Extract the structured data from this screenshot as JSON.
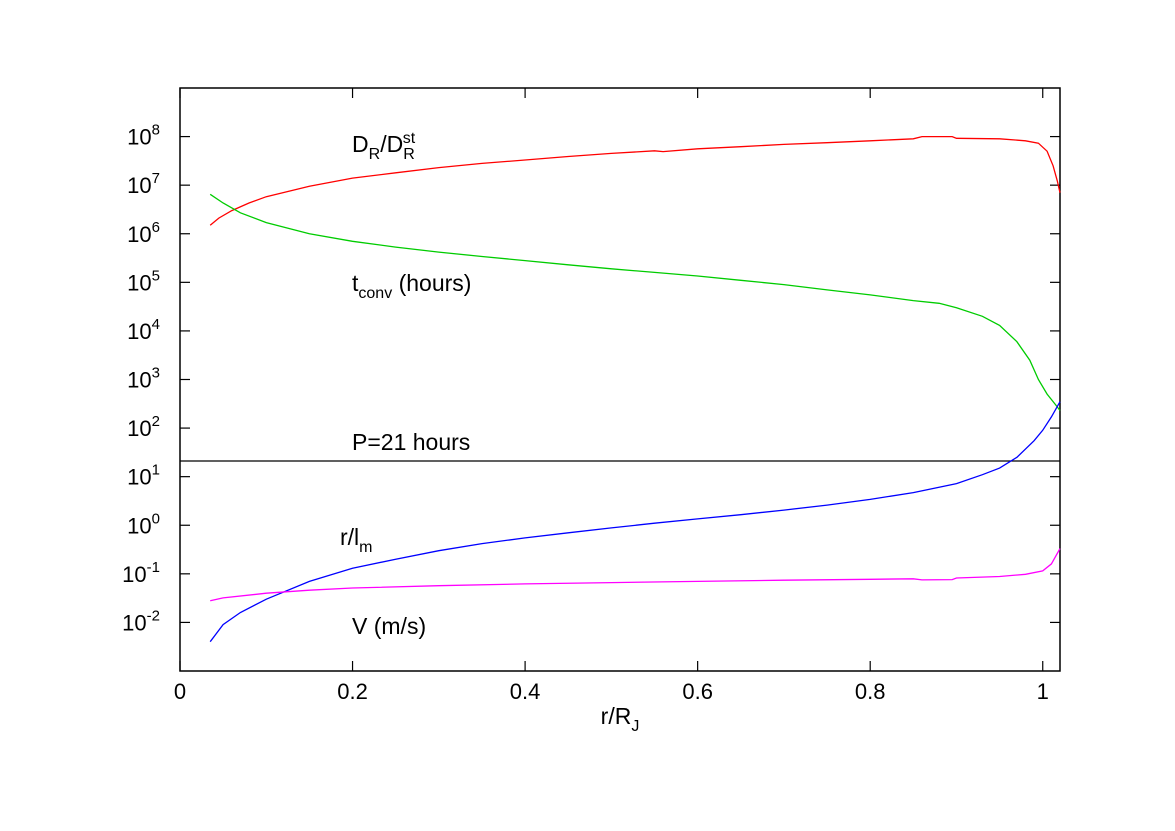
{
  "chart_data": {
    "type": "line",
    "title": "",
    "xlabel": {
      "base": "r/R",
      "sub": "J"
    },
    "ylabel": "",
    "xlim": [
      0,
      1.02
    ],
    "ylim_log10": [
      -3,
      9
    ],
    "yscale": "log",
    "grid": false,
    "x_ticks": [
      "0",
      "0.2",
      "0.4",
      "0.6",
      "0.8",
      "1"
    ],
    "y_ticks": [
      {
        "base": "10",
        "exp": "-2"
      },
      {
        "base": "10",
        "exp": "-1"
      },
      {
        "base": "10",
        "exp": "0"
      },
      {
        "base": "10",
        "exp": "1"
      },
      {
        "base": "10",
        "exp": "2"
      },
      {
        "base": "10",
        "exp": "3"
      },
      {
        "base": "10",
        "exp": "4"
      },
      {
        "base": "10",
        "exp": "5"
      },
      {
        "base": "10",
        "exp": "6"
      },
      {
        "base": "10",
        "exp": "7"
      },
      {
        "base": "10",
        "exp": "8"
      }
    ],
    "hline": {
      "y": 21,
      "color": "#000000"
    },
    "annotations": [
      {
        "id": "dr",
        "parts": [
          {
            "t": "D",
            "k": "n"
          },
          {
            "t": "R",
            "k": "sub"
          },
          {
            "t": "/D",
            "k": "n"
          },
          {
            "t": "R",
            "k": "subsup"
          }
        ],
        "sup": "st"
      },
      {
        "id": "tconv",
        "parts": [
          {
            "t": "t",
            "k": "n"
          },
          {
            "t": "conv",
            "k": "sub"
          },
          {
            "t": " (hours)",
            "k": "n"
          }
        ]
      },
      {
        "id": "period",
        "parts": [
          {
            "t": "P=21 hours",
            "k": "n"
          }
        ]
      },
      {
        "id": "rlm",
        "parts": [
          {
            "t": "r/l",
            "k": "n"
          },
          {
            "t": "m",
            "k": "sub"
          }
        ]
      },
      {
        "id": "velocity",
        "parts": [
          {
            "t": "V (m/s)",
            "k": "n"
          }
        ]
      }
    ],
    "series": [
      {
        "color": "#ff0000",
        "points": [
          [
            0.035,
            1500000.0
          ],
          [
            0.045,
            2100000.0
          ],
          [
            0.06,
            3000000.0
          ],
          [
            0.08,
            4300000.0
          ],
          [
            0.1,
            5800000.0
          ],
          [
            0.15,
            9500000.0
          ],
          [
            0.2,
            14000000.0
          ],
          [
            0.25,
            18000000.0
          ],
          [
            0.3,
            23000000.0
          ],
          [
            0.35,
            28000000.0
          ],
          [
            0.4,
            33000000.0
          ],
          [
            0.45,
            39000000.0
          ],
          [
            0.5,
            45000000.0
          ],
          [
            0.55,
            51000000.0
          ],
          [
            0.56,
            49000000.0
          ],
          [
            0.6,
            56000000.0
          ],
          [
            0.65,
            62000000.0
          ],
          [
            0.7,
            69000000.0
          ],
          [
            0.75,
            75000000.0
          ],
          [
            0.8,
            82000000.0
          ],
          [
            0.85,
            90000000.0
          ],
          [
            0.86,
            100000000.0
          ],
          [
            0.895,
            100000000.0
          ],
          [
            0.9,
            92000000.0
          ],
          [
            0.95,
            90000000.0
          ],
          [
            0.98,
            82000000.0
          ],
          [
            0.995,
            73000000.0
          ],
          [
            1.005,
            50000000.0
          ],
          [
            1.012,
            25000000.0
          ],
          [
            1.017,
            12000000.0
          ],
          [
            1.02,
            7000000.0
          ]
        ]
      },
      {
        "color": "#00cc00",
        "points": [
          [
            0.035,
            6500000.0
          ],
          [
            0.05,
            4300000.0
          ],
          [
            0.07,
            2700000.0
          ],
          [
            0.1,
            1700000.0
          ],
          [
            0.15,
            1000000.0
          ],
          [
            0.2,
            700000.0
          ],
          [
            0.25,
            530000.0
          ],
          [
            0.3,
            420000.0
          ],
          [
            0.35,
            340000.0
          ],
          [
            0.4,
            280000.0
          ],
          [
            0.45,
            230000.0
          ],
          [
            0.5,
            190000.0
          ],
          [
            0.55,
            160000.0
          ],
          [
            0.6,
            135000.0
          ],
          [
            0.65,
            110000.0
          ],
          [
            0.7,
            90000.0
          ],
          [
            0.75,
            70000.0
          ],
          [
            0.8,
            55000.0
          ],
          [
            0.85,
            42000.0
          ],
          [
            0.88,
            37000.0
          ],
          [
            0.9,
            30000.0
          ],
          [
            0.93,
            20000.0
          ],
          [
            0.95,
            13000.0
          ],
          [
            0.97,
            6000.0
          ],
          [
            0.985,
            2500.0
          ],
          [
            0.995,
            1000.0
          ],
          [
            1.005,
            500.0
          ],
          [
            1.015,
            300.0
          ],
          [
            1.02,
            230.0
          ]
        ]
      },
      {
        "color": "#0000ff",
        "points": [
          [
            0.035,
            0.004
          ],
          [
            0.05,
            0.009
          ],
          [
            0.07,
            0.016
          ],
          [
            0.1,
            0.03
          ],
          [
            0.15,
            0.07
          ],
          [
            0.2,
            0.13
          ],
          [
            0.25,
            0.2
          ],
          [
            0.3,
            0.3
          ],
          [
            0.35,
            0.42
          ],
          [
            0.4,
            0.55
          ],
          [
            0.45,
            0.7
          ],
          [
            0.5,
            0.88
          ],
          [
            0.55,
            1.1
          ],
          [
            0.6,
            1.35
          ],
          [
            0.65,
            1.65
          ],
          [
            0.7,
            2.05
          ],
          [
            0.75,
            2.6
          ],
          [
            0.8,
            3.4
          ],
          [
            0.85,
            4.7
          ],
          [
            0.9,
            7.2
          ],
          [
            0.93,
            11
          ],
          [
            0.95,
            15
          ],
          [
            0.97,
            25
          ],
          [
            0.99,
            55
          ],
          [
            1.0,
            90
          ],
          [
            1.01,
            170
          ],
          [
            1.02,
            350
          ]
        ]
      },
      {
        "color": "#ff00ff",
        "points": [
          [
            0.035,
            0.028
          ],
          [
            0.05,
            0.032
          ],
          [
            0.1,
            0.04
          ],
          [
            0.15,
            0.046
          ],
          [
            0.2,
            0.051
          ],
          [
            0.3,
            0.057
          ],
          [
            0.4,
            0.062
          ],
          [
            0.5,
            0.066
          ],
          [
            0.6,
            0.07
          ],
          [
            0.7,
            0.074
          ],
          [
            0.8,
            0.077
          ],
          [
            0.85,
            0.079
          ],
          [
            0.86,
            0.075
          ],
          [
            0.895,
            0.076
          ],
          [
            0.9,
            0.082
          ],
          [
            0.95,
            0.088
          ],
          [
            0.98,
            0.098
          ],
          [
            1.0,
            0.115
          ],
          [
            1.01,
            0.16
          ],
          [
            1.02,
            0.33
          ]
        ]
      }
    ]
  }
}
